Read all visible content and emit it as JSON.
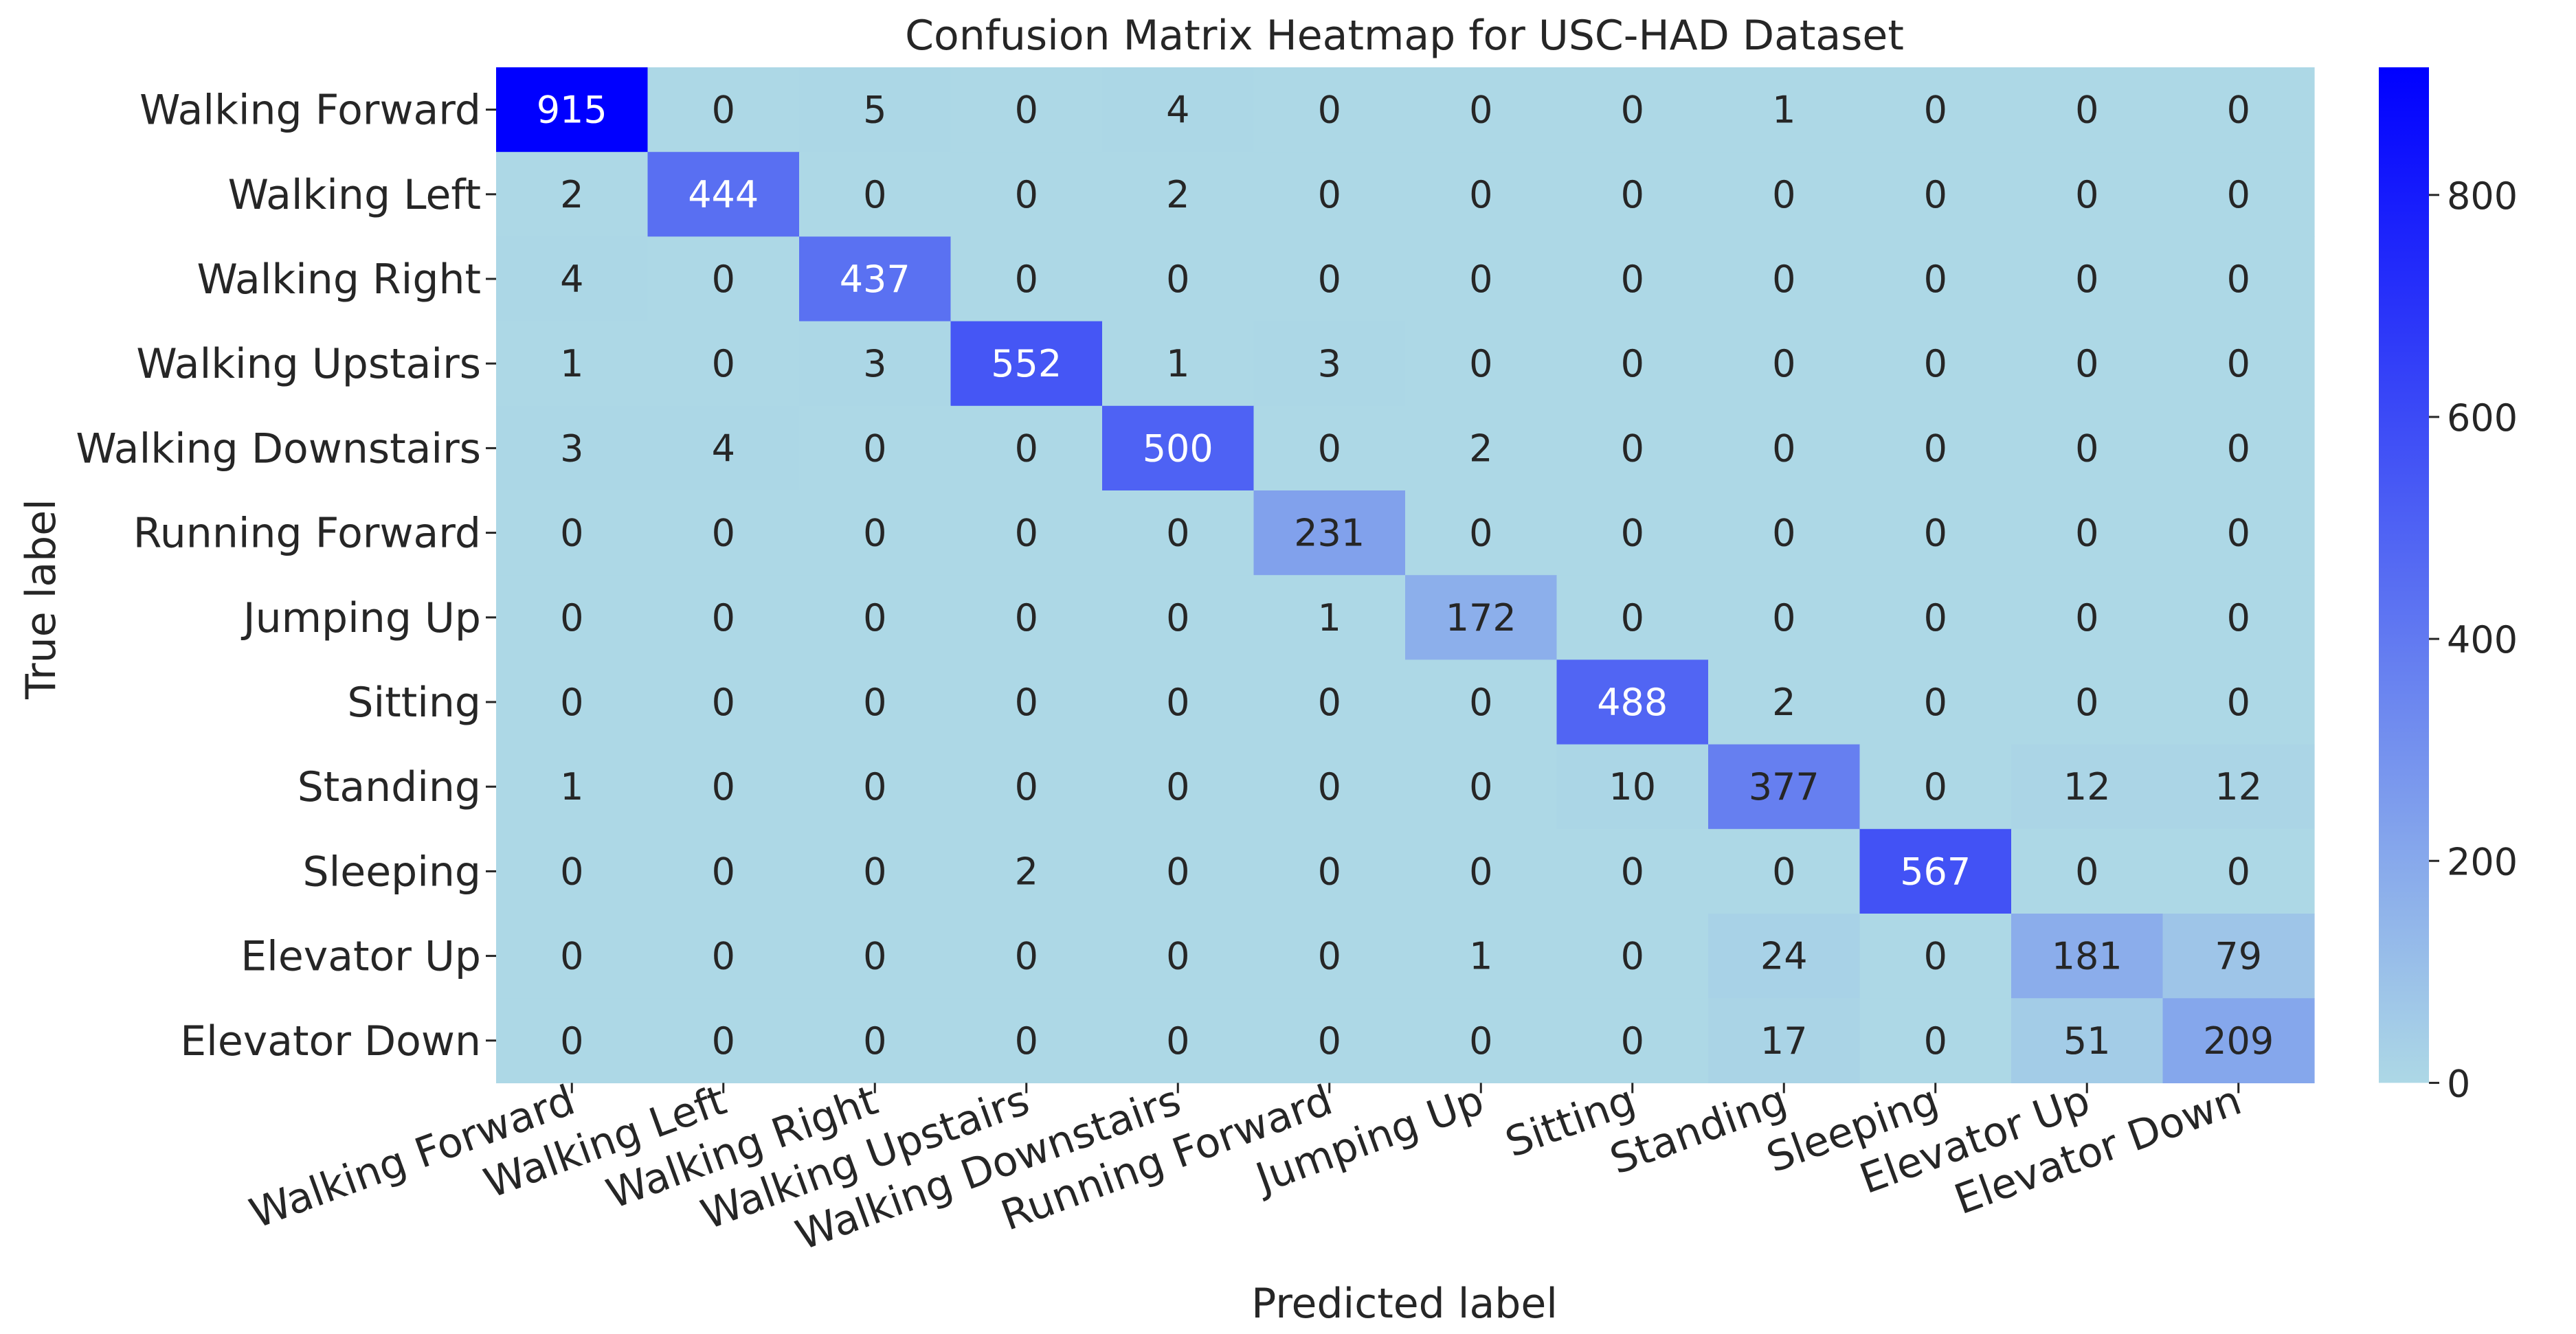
{
  "chart_data": {
    "type": "heatmap",
    "title": "Confusion Matrix Heatmap for USC-HAD Dataset",
    "xlabel": "Predicted label",
    "ylabel": "True label",
    "categories": [
      "Walking Forward",
      "Walking Left",
      "Walking Right",
      "Walking Upstairs",
      "Walking Downstairs",
      "Running Forward",
      "Jumping Up",
      "Sitting",
      "Standing",
      "Sleeping",
      "Elevator Up",
      "Elevator Down"
    ],
    "matrix": [
      [
        915,
        0,
        5,
        0,
        4,
        0,
        0,
        0,
        1,
        0,
        0,
        0
      ],
      [
        2,
        444,
        0,
        0,
        2,
        0,
        0,
        0,
        0,
        0,
        0,
        0
      ],
      [
        4,
        0,
        437,
        0,
        0,
        0,
        0,
        0,
        0,
        0,
        0,
        0
      ],
      [
        1,
        0,
        3,
        552,
        1,
        3,
        0,
        0,
        0,
        0,
        0,
        0
      ],
      [
        3,
        4,
        0,
        0,
        500,
        0,
        2,
        0,
        0,
        0,
        0,
        0
      ],
      [
        0,
        0,
        0,
        0,
        0,
        231,
        0,
        0,
        0,
        0,
        0,
        0
      ],
      [
        0,
        0,
        0,
        0,
        0,
        1,
        172,
        0,
        0,
        0,
        0,
        0
      ],
      [
        0,
        0,
        0,
        0,
        0,
        0,
        0,
        488,
        2,
        0,
        0,
        0
      ],
      [
        1,
        0,
        0,
        0,
        0,
        0,
        0,
        10,
        377,
        0,
        12,
        12
      ],
      [
        0,
        0,
        0,
        2,
        0,
        0,
        0,
        0,
        0,
        567,
        0,
        0
      ],
      [
        0,
        0,
        0,
        0,
        0,
        0,
        1,
        0,
        24,
        0,
        181,
        79
      ],
      [
        0,
        0,
        0,
        0,
        0,
        0,
        0,
        0,
        17,
        0,
        51,
        209
      ]
    ],
    "colormap": {
      "low": "#add8e6",
      "high": "#0000ff"
    },
    "colorbar": {
      "min": 0,
      "max": 915,
      "ticks": [
        0,
        200,
        400,
        600,
        800
      ]
    },
    "text_color_light": "#ffffff",
    "text_color_dark": "#262626"
  }
}
